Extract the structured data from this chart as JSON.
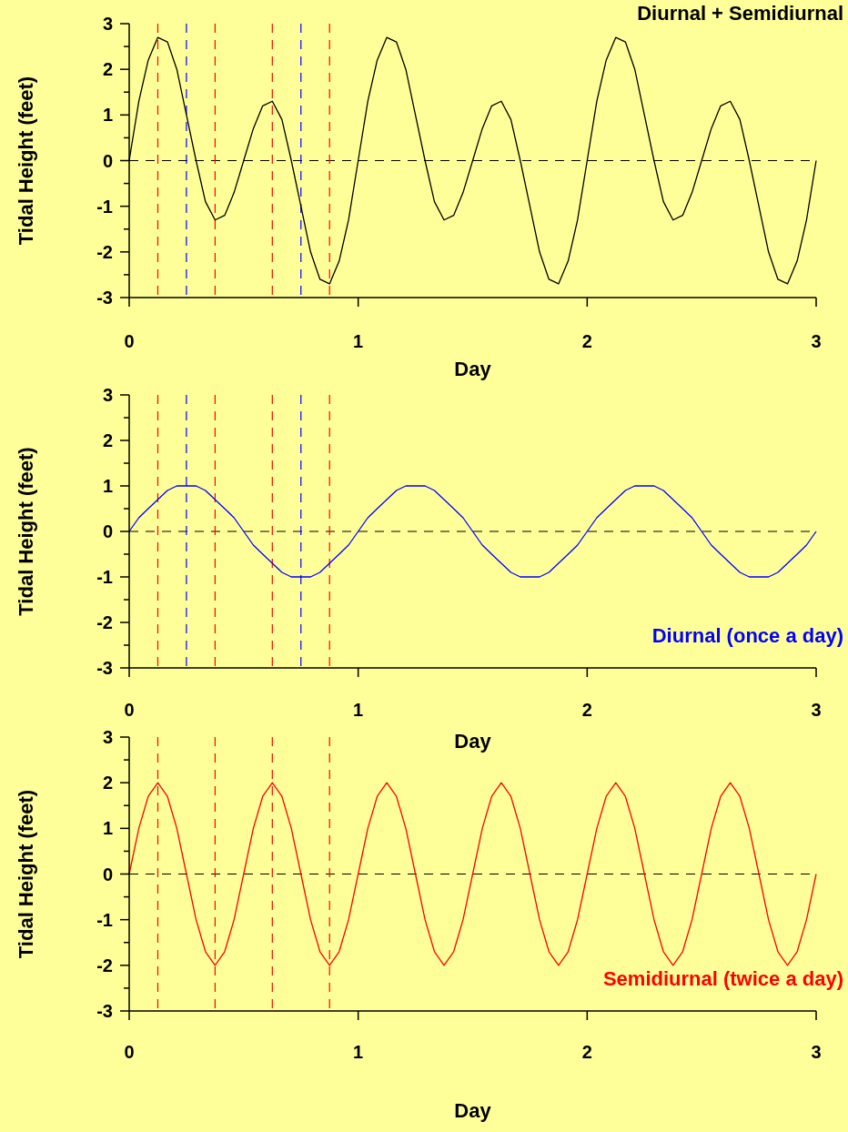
{
  "chart_data": [
    {
      "type": "line",
      "xlabel": "Day",
      "ylabel": "Tidal Height (feet)",
      "legend": "top right",
      "xlim": [
        0,
        3
      ],
      "xticks": [
        0,
        1,
        2,
        3
      ],
      "ylim": [
        -3,
        3
      ],
      "yticks": [
        -3,
        {
          "value": -2.5,
          "label": null
        },
        -2,
        {
          "value": -1.5,
          "label": null
        },
        -1,
        {
          "value": -0.5,
          "label": null
        },
        0,
        {
          "value": 0.5,
          "label": null
        },
        1,
        {
          "value": 1.5,
          "label": null
        },
        2,
        {
          "value": 2.5,
          "label": null
        },
        3
      ],
      "x": [
        0,
        0.042,
        0.083,
        0.125,
        0.167,
        0.208,
        0.25,
        0.292,
        0.333,
        0.375,
        0.417,
        0.458,
        0.5,
        0.542,
        0.583,
        0.625,
        0.667,
        0.708,
        0.75,
        0.792,
        0.833,
        0.875,
        0.917,
        0.958,
        1,
        1.042,
        1.083,
        1.125,
        1.167,
        1.208,
        1.25,
        1.292,
        1.333,
        1.375,
        1.417,
        1.458,
        1.5,
        1.542,
        1.583,
        1.625,
        1.667,
        1.708,
        1.75,
        1.792,
        1.833,
        1.875,
        1.917,
        1.958,
        2,
        2.042,
        2.083,
        2.125,
        2.167,
        2.208,
        2.25,
        2.292,
        2.333,
        2.375,
        2.417,
        2.458,
        2.5,
        2.542,
        2.583,
        2.625,
        2.667,
        2.708,
        2.75,
        2.792,
        2.833,
        2.875,
        2.917,
        2.958,
        3
      ],
      "series": [
        {
          "name": "Diurnal + Semidiurnal",
          "color": "#000000",
          "values": [
            0,
            1.3,
            2.2,
            2.7,
            2.6,
            2,
            1,
            0,
            -0.9,
            -1.3,
            -1.2,
            -0.7,
            0,
            0.7,
            1.2,
            1.3,
            0.9,
            0,
            -1,
            -2,
            -2.6,
            -2.7,
            -2.2,
            -1.3,
            0,
            1.3,
            2.2,
            2.7,
            2.6,
            2,
            1,
            0,
            -0.9,
            -1.3,
            -1.2,
            -0.7,
            0,
            0.7,
            1.2,
            1.3,
            0.9,
            0,
            -1,
            -2,
            -2.6,
            -2.7,
            -2.2,
            -1.3,
            0,
            1.3,
            2.2,
            2.7,
            2.6,
            2,
            1,
            0,
            -0.9,
            -1.3,
            -1.2,
            -0.7,
            0,
            0.7,
            1.2,
            1.3,
            0.9,
            0,
            -1,
            -2,
            -2.6,
            -2.7,
            -2.2,
            -1.3,
            0
          ]
        }
      ],
      "ref_lines": [
        {
          "axis": "y",
          "value": 0,
          "color": "#000000",
          "line_style": "dashed"
        },
        {
          "axis": "x",
          "value": 0.125,
          "color": "#ff0000",
          "line_style": "dashed"
        },
        {
          "axis": "x",
          "value": 0.25,
          "color": "#0000ff",
          "line_style": "dashed"
        },
        {
          "axis": "x",
          "value": 0.375,
          "color": "#ff0000",
          "line_style": "dashed"
        },
        {
          "axis": "x",
          "value": 0.625,
          "color": "#ff0000",
          "line_style": "dashed"
        },
        {
          "axis": "x",
          "value": 0.75,
          "color": "#0000ff",
          "line_style": "dashed"
        },
        {
          "axis": "x",
          "value": 0.875,
          "color": "#ff0000",
          "line_style": "dashed"
        }
      ]
    },
    {
      "type": "line",
      "xlabel": "Day",
      "ylabel": "Tidal Height (feet)",
      "legend": "bottom right",
      "xlim": [
        0,
        3
      ],
      "xticks": [
        0,
        1,
        2,
        3
      ],
      "ylim": [
        -3,
        3
      ],
      "yticks": [
        -3,
        {
          "value": -2.5,
          "label": null
        },
        -2,
        {
          "value": -1.5,
          "label": null
        },
        -1,
        {
          "value": -0.5,
          "label": null
        },
        0,
        {
          "value": 0.5,
          "label": null
        },
        1,
        {
          "value": 1.5,
          "label": null
        },
        2,
        {
          "value": 2.5,
          "label": null
        },
        3
      ],
      "x": [
        0,
        0.042,
        0.083,
        0.125,
        0.167,
        0.208,
        0.25,
        0.292,
        0.333,
        0.375,
        0.417,
        0.458,
        0.5,
        0.542,
        0.583,
        0.625,
        0.667,
        0.708,
        0.75,
        0.792,
        0.833,
        0.875,
        0.917,
        0.958,
        1,
        1.042,
        1.083,
        1.125,
        1.167,
        1.208,
        1.25,
        1.292,
        1.333,
        1.375,
        1.417,
        1.458,
        1.5,
        1.542,
        1.583,
        1.625,
        1.667,
        1.708,
        1.75,
        1.792,
        1.833,
        1.875,
        1.917,
        1.958,
        2,
        2.042,
        2.083,
        2.125,
        2.167,
        2.208,
        2.25,
        2.292,
        2.333,
        2.375,
        2.417,
        2.458,
        2.5,
        2.542,
        2.583,
        2.625,
        2.667,
        2.708,
        2.75,
        2.792,
        2.833,
        2.875,
        2.917,
        2.958,
        3
      ],
      "series": [
        {
          "name": "Diurnal (once a day)",
          "color": "#0000ff",
          "values": [
            0,
            0.3,
            0.5,
            0.7,
            0.9,
            1,
            1,
            1,
            0.9,
            0.7,
            0.5,
            0.3,
            0,
            -0.3,
            -0.5,
            -0.7,
            -0.9,
            -1,
            -1,
            -1,
            -0.9,
            -0.7,
            -0.5,
            -0.3,
            0,
            0.3,
            0.5,
            0.7,
            0.9,
            1,
            1,
            1,
            0.9,
            0.7,
            0.5,
            0.3,
            0,
            -0.3,
            -0.5,
            -0.7,
            -0.9,
            -1,
            -1,
            -1,
            -0.9,
            -0.7,
            -0.5,
            -0.3,
            0,
            0.3,
            0.5,
            0.7,
            0.9,
            1,
            1,
            1,
            0.9,
            0.7,
            0.5,
            0.3,
            0,
            -0.3,
            -0.5,
            -0.7,
            -0.9,
            -1,
            -1,
            -1,
            -0.9,
            -0.7,
            -0.5,
            -0.3,
            0
          ]
        }
      ],
      "ref_lines": [
        {
          "axis": "y",
          "value": 0,
          "color": "#000000",
          "line_style": "dashed"
        },
        {
          "axis": "x",
          "value": 0.125,
          "color": "#ff0000",
          "line_style": "dashed"
        },
        {
          "axis": "x",
          "value": 0.25,
          "color": "#0000ff",
          "line_style": "dashed"
        },
        {
          "axis": "x",
          "value": 0.375,
          "color": "#ff0000",
          "line_style": "dashed"
        },
        {
          "axis": "x",
          "value": 0.625,
          "color": "#ff0000",
          "line_style": "dashed"
        },
        {
          "axis": "x",
          "value": 0.75,
          "color": "#0000ff",
          "line_style": "dashed"
        },
        {
          "axis": "x",
          "value": 0.875,
          "color": "#ff0000",
          "line_style": "dashed"
        }
      ]
    },
    {
      "type": "line",
      "xlabel": "Day",
      "ylabel": "Tidal Height (feet)",
      "legend": "bottom right",
      "xlim": [
        0,
        3
      ],
      "xticks": [
        0,
        1,
        2,
        3
      ],
      "ylim": [
        -3,
        3
      ],
      "yticks": [
        -3,
        {
          "value": -2.5,
          "label": null
        },
        -2,
        {
          "value": -1.5,
          "label": null
        },
        -1,
        {
          "value": -0.5,
          "label": null
        },
        0,
        {
          "value": 0.5,
          "label": null
        },
        1,
        {
          "value": 1.5,
          "label": null
        },
        2,
        {
          "value": 2.5,
          "label": null
        },
        3
      ],
      "x": [
        0,
        0.042,
        0.083,
        0.125,
        0.167,
        0.208,
        0.25,
        0.292,
        0.333,
        0.375,
        0.417,
        0.458,
        0.5,
        0.542,
        0.583,
        0.625,
        0.667,
        0.708,
        0.75,
        0.792,
        0.833,
        0.875,
        0.917,
        0.958,
        1,
        1.042,
        1.083,
        1.125,
        1.167,
        1.208,
        1.25,
        1.292,
        1.333,
        1.375,
        1.417,
        1.458,
        1.5,
        1.542,
        1.583,
        1.625,
        1.667,
        1.708,
        1.75,
        1.792,
        1.833,
        1.875,
        1.917,
        1.958,
        2,
        2.042,
        2.083,
        2.125,
        2.167,
        2.208,
        2.25,
        2.292,
        2.333,
        2.375,
        2.417,
        2.458,
        2.5,
        2.542,
        2.583,
        2.625,
        2.667,
        2.708,
        2.75,
        2.792,
        2.833,
        2.875,
        2.917,
        2.958,
        3
      ],
      "series": [
        {
          "name": "Semidiurnal (twice a day)",
          "color": "#ff0000",
          "values": [
            0,
            1,
            1.7,
            2,
            1.7,
            1,
            0,
            -1,
            -1.7,
            -2,
            -1.7,
            -1,
            0,
            1,
            1.7,
            2,
            1.7,
            1,
            0,
            -1,
            -1.7,
            -2,
            -1.7,
            -1,
            0,
            1,
            1.7,
            2,
            1.7,
            1,
            0,
            -1,
            -1.7,
            -2,
            -1.7,
            -1,
            0,
            1,
            1.7,
            2,
            1.7,
            1,
            0,
            -1,
            -1.7,
            -2,
            -1.7,
            -1,
            0,
            1,
            1.7,
            2,
            1.7,
            1,
            0,
            -1,
            -1.7,
            -2,
            -1.7,
            -1,
            0,
            1,
            1.7,
            2,
            1.7,
            1,
            0,
            -1,
            -1.7,
            -2,
            -1.7,
            -1,
            0
          ]
        }
      ],
      "ref_lines": [
        {
          "axis": "y",
          "value": 0,
          "color": "#000000",
          "line_style": "dashed"
        },
        {
          "axis": "x",
          "value": 0.125,
          "color": "#ff0000",
          "line_style": "dashed"
        },
        {
          "axis": "x",
          "value": 0.375,
          "color": "#ff0000",
          "line_style": "dashed"
        },
        {
          "axis": "x",
          "value": 0.625,
          "color": "#ff0000",
          "line_style": "dashed"
        },
        {
          "axis": "x",
          "value": 0.875,
          "color": "#ff0000",
          "line_style": "dashed"
        }
      ]
    }
  ]
}
